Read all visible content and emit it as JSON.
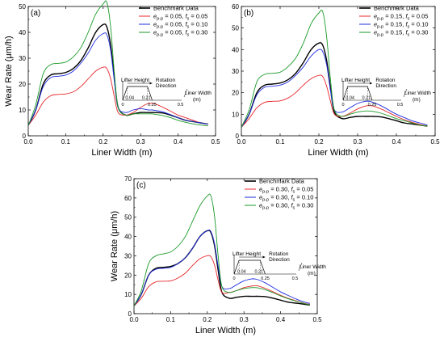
{
  "chart_data": [
    {
      "panel": "(a)",
      "type": "line",
      "xlabel": "Liner Width (m)",
      "ylabel": "Wear Rate (μm/h)",
      "xlim": [
        0.0,
        0.5
      ],
      "ylim": [
        0,
        50
      ],
      "xticks": [
        0.0,
        0.1,
        0.2,
        0.3,
        0.4,
        0.5
      ],
      "yticks": [
        0,
        10,
        20,
        30,
        40,
        50
      ],
      "legend_position": "top-right",
      "x": [
        0.0,
        0.02,
        0.04,
        0.06,
        0.08,
        0.1,
        0.12,
        0.14,
        0.16,
        0.18,
        0.2,
        0.21,
        0.22,
        0.23,
        0.24,
        0.26,
        0.28,
        0.3,
        0.32,
        0.33,
        0.34,
        0.36,
        0.38,
        0.4,
        0.42,
        0.44,
        0.46,
        0.48
      ],
      "series": [
        {
          "name": "Benchmark Data",
          "color": "#000000",
          "values": [
            4,
            10,
            20,
            23.5,
            24,
            24.5,
            26,
            29,
            34,
            40,
            43,
            42,
            35,
            22,
            11,
            8,
            8.5,
            9,
            9,
            9,
            9,
            8.8,
            8,
            7,
            6,
            5.5,
            5,
            4.5
          ]
        },
        {
          "name_parts": [
            "e",
            "p-p",
            " = 0.05, ",
            "f",
            "s",
            " = 0.05"
          ],
          "color": "#e8262b",
          "values": [
            4,
            8,
            13,
            15.5,
            16,
            16.2,
            17,
            19,
            22,
            25,
            26.5,
            26,
            22,
            15,
            9,
            8,
            9,
            11,
            12.5,
            12.5,
            12.3,
            11,
            9.5,
            8,
            7,
            6,
            5,
            4.5
          ]
        },
        {
          "name_parts": [
            "e",
            "p-p",
            " = 0.05, ",
            "f",
            "s",
            " = 0.10"
          ],
          "color": "#1f2de0",
          "values": [
            4,
            10,
            19,
            22.5,
            23,
            23.5,
            25,
            28,
            32,
            37,
            39.5,
            39,
            33,
            21,
            11,
            9,
            10,
            10.5,
            10,
            10,
            9.8,
            9.2,
            8.2,
            7,
            6,
            5.5,
            5,
            4.5
          ]
        },
        {
          "name_parts": [
            "e",
            "p-p",
            " = 0.05, ",
            "f",
            "s",
            " = 0.30"
          ],
          "color": "#1a9a28",
          "values": [
            4,
            12,
            24,
            27.5,
            28,
            28.5,
            30.5,
            34,
            40,
            47,
            51,
            51.5,
            42,
            24,
            11,
            8,
            8.5,
            8.5,
            8.5,
            8.5,
            8.3,
            7.8,
            7,
            6,
            5.2,
            4.6,
            4.2,
            3.8
          ]
        }
      ]
    },
    {
      "panel": "(b)",
      "type": "line",
      "xlabel": "Liner Width (m)",
      "ylabel": "",
      "xlim": [
        0.0,
        0.5
      ],
      "ylim": [
        0,
        60
      ],
      "xticks": [
        0.0,
        0.1,
        0.2,
        0.3,
        0.4,
        0.5
      ],
      "yticks": [
        0,
        10,
        20,
        30,
        40,
        50,
        60
      ],
      "legend_position": "top-right",
      "x": [
        0.0,
        0.02,
        0.04,
        0.06,
        0.08,
        0.1,
        0.12,
        0.14,
        0.16,
        0.18,
        0.2,
        0.21,
        0.22,
        0.23,
        0.24,
        0.26,
        0.28,
        0.3,
        0.32,
        0.33,
        0.34,
        0.36,
        0.38,
        0.4,
        0.42,
        0.44,
        0.46,
        0.48
      ],
      "series": [
        {
          "name": "Benchmark Data",
          "color": "#000000",
          "values": [
            4,
            10,
            20,
            23.5,
            24,
            24.5,
            26,
            29,
            34,
            40,
            43,
            42,
            35,
            22,
            11,
            8,
            8.5,
            9,
            9,
            9,
            9,
            8.8,
            8,
            7,
            6,
            5.5,
            5,
            4.5
          ]
        },
        {
          "name_parts": [
            "e",
            "p-p",
            " = 0.15, ",
            "f",
            "s",
            " = 0.05"
          ],
          "color": "#e8262b",
          "values": [
            4,
            8,
            13,
            15.5,
            16,
            16.2,
            17.5,
            20,
            23.5,
            26.5,
            28,
            27.5,
            23,
            16,
            10,
            9,
            10.5,
            12.5,
            13.8,
            14,
            13.8,
            12.5,
            10.8,
            9,
            7.5,
            6.3,
            5.3,
            4.5
          ]
        },
        {
          "name_parts": [
            "e",
            "p-p",
            " = 0.15, ",
            "f",
            "s",
            " = 0.10"
          ],
          "color": "#1f2de0",
          "values": [
            4,
            10,
            19,
            22.5,
            23,
            23.5,
            25,
            28,
            32,
            37,
            40,
            39,
            33,
            21,
            12,
            11,
            13,
            15,
            16,
            16,
            15.5,
            14,
            12,
            10,
            8.5,
            7,
            6,
            5
          ]
        },
        {
          "name_parts": [
            "e",
            "p-p",
            " = 0.15, ",
            "f",
            "s",
            " = 0.30"
          ],
          "color": "#1a9a28",
          "values": [
            4,
            12,
            25,
            28.5,
            29,
            29.5,
            32,
            36,
            43,
            52,
            57,
            57.5,
            46,
            26,
            12,
            9,
            10,
            11,
            11.5,
            11.5,
            11.3,
            10.5,
            9.3,
            8,
            7,
            6,
            5,
            4.5
          ]
        }
      ]
    },
    {
      "panel": "(c)",
      "type": "line",
      "xlabel": "Liner Width (m)",
      "ylabel": "Wear Rate (μm/h)",
      "xlim": [
        0.0,
        0.5
      ],
      "ylim": [
        0,
        70
      ],
      "xticks": [
        0.0,
        0.1,
        0.2,
        0.3,
        0.4,
        0.5
      ],
      "yticks": [
        0,
        10,
        20,
        30,
        40,
        50,
        60,
        70
      ],
      "legend_position": "top-right",
      "x": [
        0.0,
        0.02,
        0.04,
        0.06,
        0.08,
        0.1,
        0.12,
        0.14,
        0.16,
        0.18,
        0.2,
        0.21,
        0.22,
        0.23,
        0.24,
        0.26,
        0.28,
        0.3,
        0.32,
        0.33,
        0.34,
        0.36,
        0.38,
        0.4,
        0.42,
        0.44,
        0.46,
        0.48
      ],
      "series": [
        {
          "name": "Benchmark Data",
          "color": "#000000",
          "values": [
            4,
            10,
            20,
            23.5,
            24,
            24.5,
            26,
            29,
            34,
            40,
            43,
            42,
            35,
            22,
            11,
            8,
            8.5,
            9,
            9,
            9,
            9,
            8.8,
            8,
            7,
            6,
            5.5,
            5,
            4.5
          ]
        },
        {
          "name_parts": [
            "e",
            "p-p",
            " = 0.30, ",
            "f",
            "s",
            " = 0.05"
          ],
          "color": "#e8262b",
          "values": [
            4,
            8,
            14,
            16.5,
            16.8,
            17,
            18.5,
            21,
            25,
            28.5,
            30,
            29.5,
            25,
            17,
            11,
            11,
            12,
            13.5,
            14.3,
            14.5,
            14.3,
            13,
            11.3,
            9.5,
            8,
            6.8,
            5.6,
            4.8
          ]
        },
        {
          "name_parts": [
            "e",
            "p-p",
            " = 0.30, ",
            "f",
            "s",
            " = 0.10"
          ],
          "color": "#1f2de0",
          "values": [
            4,
            10,
            20,
            23,
            23.5,
            24,
            26,
            29,
            34,
            40,
            43,
            42.5,
            36,
            24,
            14,
            13,
            15,
            17,
            18,
            18,
            17.5,
            15.8,
            13.5,
            11.3,
            9.5,
            7.8,
            6.3,
            5.3
          ]
        },
        {
          "name_parts": [
            "e",
            "p-p",
            " = 0.30, ",
            "f",
            "s",
            " = 0.30"
          ],
          "color": "#1a9a28",
          "values": [
            4,
            12,
            26,
            30,
            31,
            32,
            35,
            40,
            48,
            56,
            61,
            61,
            50,
            29,
            14,
            11,
            12,
            13,
            13.5,
            13.5,
            13.3,
            12.3,
            10.8,
            9.2,
            7.8,
            6.6,
            5.5,
            4.6
          ]
        }
      ]
    }
  ],
  "inset": {
    "lifter_height": "Lifter Height",
    "rotation": [
      "Rotation",
      "Direction"
    ],
    "liner_width": "Liner Width",
    "liner_width_unit": "(m)",
    "tick_0": "0",
    "tick_004": "0.04",
    "tick_021": "0.21",
    "tick_025": "0.25",
    "tick_05": "0.5"
  }
}
